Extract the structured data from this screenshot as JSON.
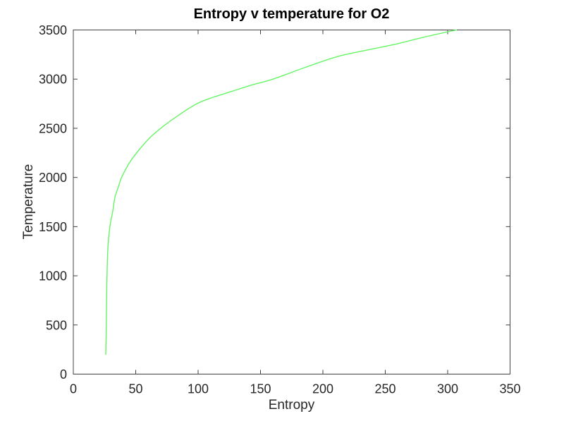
{
  "figure": {
    "background": "#ffffff"
  },
  "chart_data": {
    "type": "line",
    "title": "Entropy v temperature for O2",
    "xlabel": "Entropy",
    "ylabel": "Temperature",
    "xlim": [
      0,
      350
    ],
    "ylim": [
      0,
      3500
    ],
    "xticks": [
      0,
      50,
      100,
      150,
      200,
      250,
      300,
      350
    ],
    "yticks": [
      0,
      500,
      1000,
      1500,
      2000,
      2500,
      3000,
      3500
    ],
    "grid": false,
    "legend": null,
    "box": true,
    "tick_direction": "in",
    "line_color": "#66f566",
    "axis_color": "#404040",
    "text_color": "#262626",
    "series": [
      {
        "x": [
          26,
          26.3,
          26.6,
          27,
          27.8,
          29.3,
          31.5,
          33.4,
          36,
          38.7,
          45,
          52,
          61,
          70,
          84,
          99,
          112,
          127,
          143,
          160,
          186,
          212,
          235,
          258,
          282,
          307
        ],
        "y": [
          200,
          400,
          700,
          1000,
          1300,
          1500,
          1650,
          1800,
          1900,
          2000,
          2150,
          2270,
          2400,
          2500,
          2630,
          2750,
          2815,
          2875,
          2940,
          3000,
          3120,
          3230,
          3295,
          3355,
          3430,
          3500
        ]
      }
    ]
  }
}
